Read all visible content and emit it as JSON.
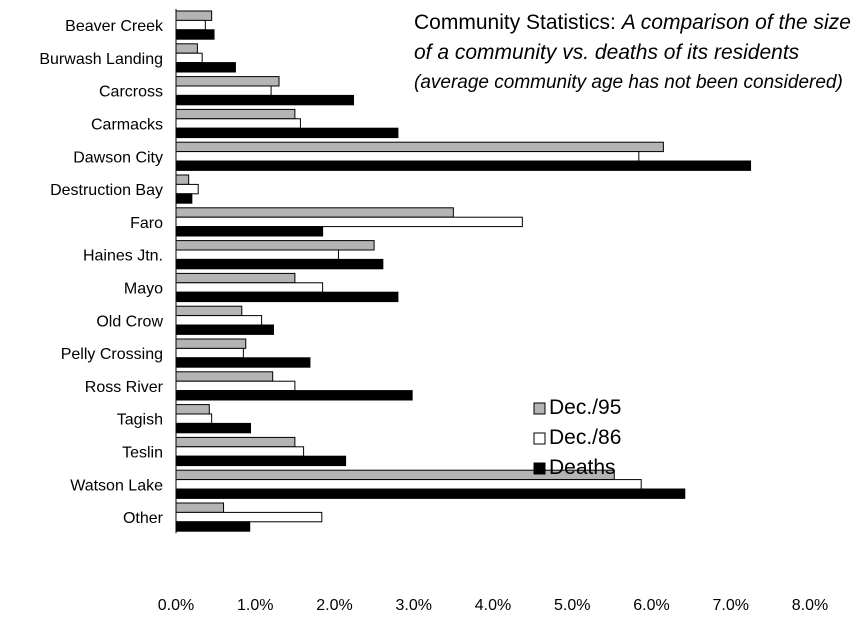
{
  "chart_data": {
    "type": "bar",
    "orientation": "horizontal",
    "title": "Community Statistics:",
    "subtitle": "A comparison of the size of a community vs. deaths of its residents",
    "note": "(average community age has not been considered)",
    "categories": [
      "Beaver Creek",
      "Burwash Landing",
      "Carcross",
      "Carmacks",
      "Dawson City",
      "Destruction Bay",
      "Faro",
      "Haines Jtn.",
      "Mayo",
      "Old Crow",
      "Pelly Crossing",
      "Ross River",
      "Tagish",
      "Teslin",
      "Watson Lake",
      "Other"
    ],
    "series": [
      {
        "name": "Dec./95",
        "color": "#b4b4b4",
        "values": [
          0.45,
          0.27,
          1.3,
          1.5,
          6.15,
          0.16,
          3.5,
          2.5,
          1.5,
          0.83,
          0.88,
          1.22,
          0.42,
          1.5,
          5.53,
          0.6
        ]
      },
      {
        "name": "Dec./86",
        "color": "#ffffff",
        "values": [
          0.37,
          0.33,
          1.2,
          1.57,
          5.84,
          0.28,
          4.37,
          2.05,
          1.85,
          1.08,
          0.85,
          1.5,
          0.45,
          1.61,
          5.87,
          1.84
        ]
      },
      {
        "name": "Deaths",
        "color": "#000000",
        "values": [
          0.48,
          0.75,
          2.24,
          2.8,
          7.25,
          0.2,
          1.85,
          2.61,
          2.8,
          1.23,
          1.69,
          2.98,
          0.94,
          2.14,
          6.42,
          0.93
        ]
      }
    ],
    "xlim": [
      0,
      8
    ],
    "xticks": [
      "0.0%",
      "1.0%",
      "2.0%",
      "3.0%",
      "4.0%",
      "5.0%",
      "6.0%",
      "7.0%",
      "8.0%"
    ],
    "xlabel": "",
    "ylabel": "",
    "grid": false,
    "legend_position": "right"
  }
}
